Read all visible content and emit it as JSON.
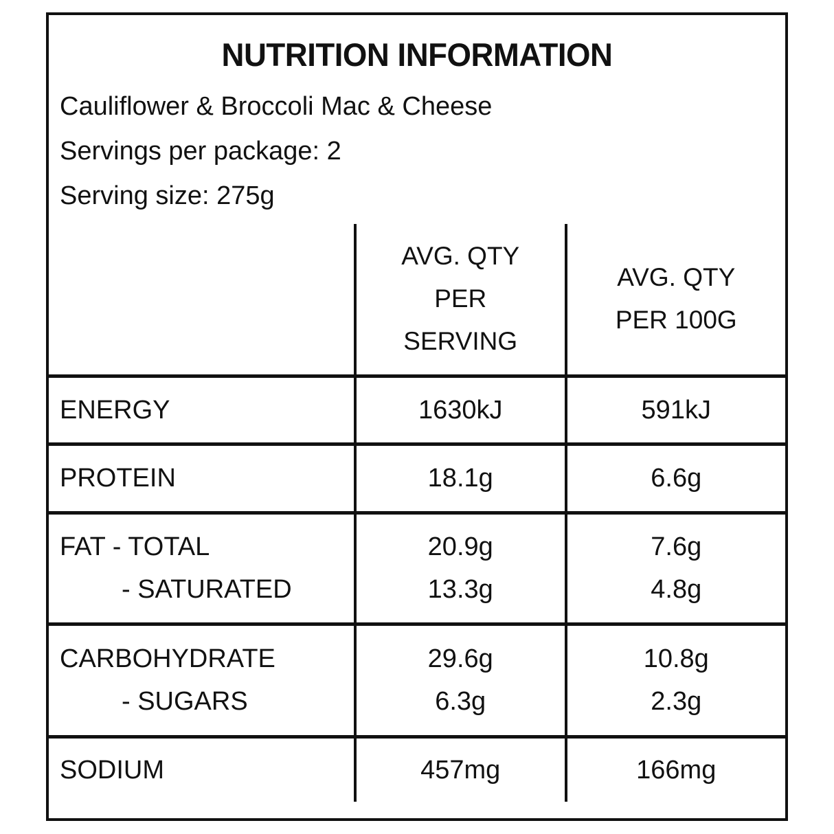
{
  "colors": {
    "text": "#111111",
    "border": "#111111",
    "background": "#ffffff"
  },
  "header": {
    "title": "NUTRITION INFORMATION",
    "product_name": "Cauliflower & Broccoli Mac & Cheese",
    "servings_per_package": "Servings per package: 2",
    "serving_size": "Serving size: 275g"
  },
  "table": {
    "column_headers": {
      "label": "",
      "per_serving_lines": [
        "AVG. QTY",
        "PER",
        "SERVING"
      ],
      "per_100g_lines": [
        "AVG. QTY",
        "PER 100G"
      ]
    },
    "rows": [
      {
        "labels": [
          "ENERGY"
        ],
        "per_serving": [
          "1630kJ"
        ],
        "per_100g": [
          "591kJ"
        ]
      },
      {
        "labels": [
          "PROTEIN"
        ],
        "per_serving": [
          "18.1g"
        ],
        "per_100g": [
          "6.6g"
        ]
      },
      {
        "labels": [
          "FAT - TOTAL",
          "- SATURATED"
        ],
        "per_serving": [
          "20.9g",
          "13.3g"
        ],
        "per_100g": [
          "7.6g",
          "4.8g"
        ]
      },
      {
        "labels": [
          "CARBOHYDRATE",
          "- SUGARS"
        ],
        "per_serving": [
          "29.6g",
          "6.3g"
        ],
        "per_100g": [
          "10.8g",
          "2.3g"
        ]
      },
      {
        "labels": [
          "SODIUM"
        ],
        "per_serving": [
          "457mg"
        ],
        "per_100g": [
          "166mg"
        ]
      }
    ]
  }
}
